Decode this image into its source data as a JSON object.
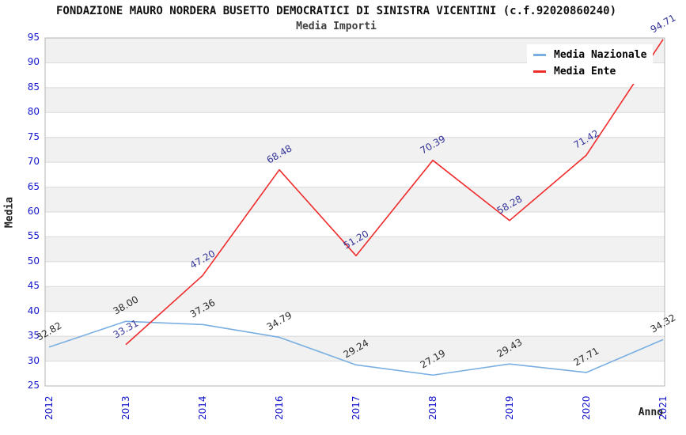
{
  "title": "FONDAZIONE MAURO NORDERA BUSETTO DEMOCRATICI DI SINISTRA VICENTINI (c.f.92020860240)",
  "subtitle": "Media Importi",
  "chart_data": {
    "type": "line",
    "categories": [
      "2012",
      "2013",
      "2014",
      "2016",
      "2017",
      "2018",
      "2019",
      "2020",
      "2021"
    ],
    "series": [
      {
        "name": "Media Nazionale",
        "color": "#79afe1",
        "label_color": "#2b2b2b",
        "values": [
          32.82,
          38.0,
          37.36,
          34.79,
          29.24,
          27.19,
          29.43,
          27.71,
          34.32
        ]
      },
      {
        "name": "Media Ente",
        "color": "#ee2c2c",
        "label_color": "#333399",
        "values": [
          null,
          33.31,
          47.2,
          68.48,
          51.2,
          70.39,
          58.28,
          71.42,
          94.71
        ]
      }
    ],
    "xlabel": "Anno",
    "ylabel": "Media",
    "ylim": [
      25,
      95
    ],
    "ytick_step": 5,
    "legend_position": "top-right",
    "grid": "horizontal-bands",
    "band_color": "#f1f1f1",
    "gridline_color": "#d9d9d9",
    "plot_border_color": "#b5b5b5",
    "tick_color": "#1414cc"
  }
}
